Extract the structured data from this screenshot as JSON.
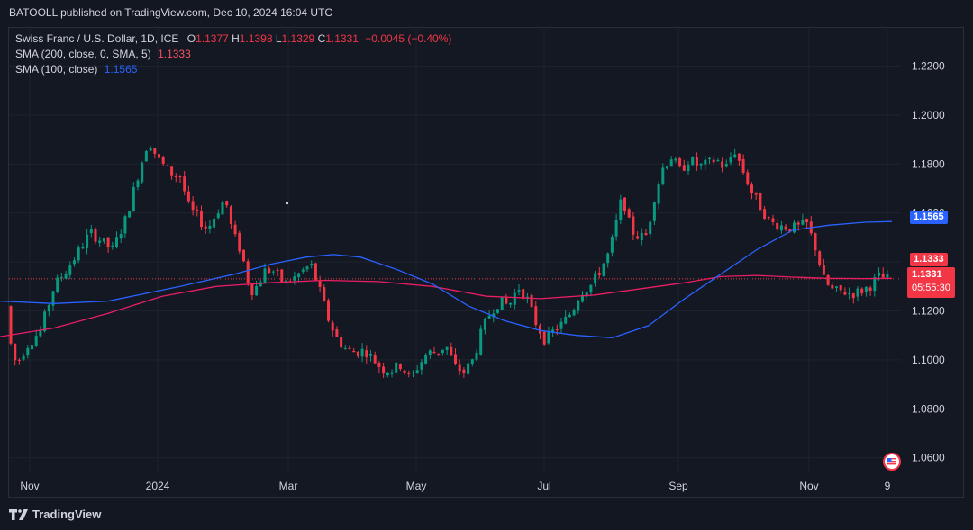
{
  "header": {
    "publisher": "BATOOLL published on TradingView.com, Dec 10, 2024 16:04 UTC"
  },
  "legend": {
    "symbol": "Swiss Franc / U.S. Dollar, 1D, ICE",
    "o_label": "O",
    "o_value": "1.1377",
    "h_label": "H",
    "h_value": "1.1398",
    "l_label": "L",
    "l_value": "1.1329",
    "c_label": "C",
    "c_value": "1.1331",
    "change": "−0.0045 (−0.40%)",
    "sma200_label": "SMA (200, close, 0, SMA, 5)",
    "sma200_value": "1.1333",
    "sma100_label": "SMA (100, close)",
    "sma100_value": "1.1565"
  },
  "price_axis": {
    "ticks": [
      "1.2200",
      "1.2000",
      "1.1800",
      "1.1600",
      "1.1400",
      "1.1200",
      "1.1000",
      "1.0800",
      "1.0600"
    ]
  },
  "time_axis": {
    "ticks": [
      "Nov",
      "2024",
      "Mar",
      "May",
      "Jul",
      "Sep",
      "Nov",
      "9"
    ]
  },
  "price_tags": {
    "sma100": "1.1565",
    "sma200": "1.1333",
    "last_price": "1.1331",
    "countdown": "05:55:30"
  },
  "footer": {
    "brand": "TradingView"
  },
  "colors": {
    "up": "#089981",
    "down": "#f23645",
    "sma100": "#2962ff",
    "sma200": "#e91e63",
    "background": "#131722",
    "grid": "#1e222d"
  },
  "chart_data": {
    "type": "candlestick",
    "title": "Swiss Franc / U.S. Dollar, 1D, ICE",
    "ylim": [
      1.054,
      1.236
    ],
    "y_ticks": [
      1.22,
      1.2,
      1.18,
      1.16,
      1.14,
      1.12,
      1.1,
      1.08,
      1.06
    ],
    "x_ticks": [
      "Nov",
      "2024",
      "Mar",
      "May",
      "Jul",
      "Sep",
      "Nov",
      "9"
    ],
    "close_path": [
      [
        0,
        1.122
      ],
      [
        8,
        1.112
      ],
      [
        18,
        1.098
      ],
      [
        30,
        1.106
      ],
      [
        45,
        1.112
      ],
      [
        60,
        1.13
      ],
      [
        80,
        1.14
      ],
      [
        100,
        1.152
      ],
      [
        115,
        1.148
      ],
      [
        125,
        1.145
      ],
      [
        140,
        1.158
      ],
      [
        155,
        1.178
      ],
      [
        165,
        1.19
      ],
      [
        175,
        1.182
      ],
      [
        190,
        1.176
      ],
      [
        200,
        1.175
      ],
      [
        210,
        1.162
      ],
      [
        220,
        1.158
      ],
      [
        230,
        1.153
      ],
      [
        240,
        1.16
      ],
      [
        250,
        1.166
      ],
      [
        258,
        1.152
      ],
      [
        268,
        1.144
      ],
      [
        278,
        1.128
      ],
      [
        285,
        1.13
      ],
      [
        295,
        1.137
      ],
      [
        305,
        1.136
      ],
      [
        315,
        1.131
      ],
      [
        325,
        1.133
      ],
      [
        335,
        1.136
      ],
      [
        345,
        1.139
      ],
      [
        355,
        1.128
      ],
      [
        365,
        1.116
      ],
      [
        375,
        1.108
      ],
      [
        385,
        1.104
      ],
      [
        395,
        1.103
      ],
      [
        405,
        1.104
      ],
      [
        415,
        1.1
      ],
      [
        425,
        1.096
      ],
      [
        435,
        1.096
      ],
      [
        445,
        1.098
      ],
      [
        455,
        1.092
      ],
      [
        465,
        1.098
      ],
      [
        475,
        1.103
      ],
      [
        485,
        1.103
      ],
      [
        495,
        1.106
      ],
      [
        505,
        1.097
      ],
      [
        515,
        1.095
      ],
      [
        525,
        1.1
      ],
      [
        535,
        1.112
      ],
      [
        545,
        1.12
      ],
      [
        555,
        1.124
      ],
      [
        565,
        1.122
      ],
      [
        575,
        1.13
      ],
      [
        585,
        1.125
      ],
      [
        595,
        1.115
      ],
      [
        605,
        1.108
      ],
      [
        615,
        1.112
      ],
      [
        625,
        1.115
      ],
      [
        635,
        1.12
      ],
      [
        645,
        1.128
      ],
      [
        655,
        1.13
      ],
      [
        665,
        1.136
      ],
      [
        675,
        1.143
      ],
      [
        682,
        1.152
      ],
      [
        688,
        1.164
      ],
      [
        694,
        1.163
      ],
      [
        700,
        1.153
      ],
      [
        710,
        1.15
      ],
      [
        718,
        1.151
      ],
      [
        726,
        1.166
      ],
      [
        735,
        1.178
      ],
      [
        745,
        1.183
      ],
      [
        755,
        1.177
      ],
      [
        765,
        1.182
      ],
      [
        775,
        1.179
      ],
      [
        785,
        1.18
      ],
      [
        795,
        1.182
      ],
      [
        805,
        1.178
      ],
      [
        815,
        1.186
      ],
      [
        825,
        1.177
      ],
      [
        835,
        1.168
      ],
      [
        845,
        1.162
      ],
      [
        855,
        1.156
      ],
      [
        865,
        1.155
      ],
      [
        875,
        1.154
      ],
      [
        885,
        1.154
      ],
      [
        895,
        1.156
      ],
      [
        905,
        1.146
      ],
      [
        915,
        1.132
      ],
      [
        925,
        1.128
      ],
      [
        935,
        1.128
      ],
      [
        945,
        1.127
      ],
      [
        955,
        1.128
      ],
      [
        965,
        1.13
      ],
      [
        975,
        1.134
      ],
      [
        985,
        1.1331
      ]
    ],
    "sma100_path": [
      [
        0,
        1.124
      ],
      [
        60,
        1.123
      ],
      [
        120,
        1.124
      ],
      [
        200,
        1.13
      ],
      [
        260,
        1.135
      ],
      [
        300,
        1.139
      ],
      [
        340,
        1.142
      ],
      [
        370,
        1.143
      ],
      [
        400,
        1.142
      ],
      [
        440,
        1.137
      ],
      [
        480,
        1.131
      ],
      [
        520,
        1.122
      ],
      [
        560,
        1.116
      ],
      [
        600,
        1.112
      ],
      [
        640,
        1.11
      ],
      [
        680,
        1.109
      ],
      [
        720,
        1.114
      ],
      [
        760,
        1.125
      ],
      [
        800,
        1.135
      ],
      [
        840,
        1.145
      ],
      [
        880,
        1.153
      ],
      [
        920,
        1.155
      ],
      [
        960,
        1.1562
      ],
      [
        990,
        1.1565
      ]
    ],
    "sma200_path": [
      [
        0,
        1.1095
      ],
      [
        60,
        1.113
      ],
      [
        120,
        1.119
      ],
      [
        180,
        1.126
      ],
      [
        240,
        1.13
      ],
      [
        300,
        1.1315
      ],
      [
        360,
        1.1325
      ],
      [
        420,
        1.132
      ],
      [
        480,
        1.13
      ],
      [
        540,
        1.126
      ],
      [
        600,
        1.125
      ],
      [
        660,
        1.1265
      ],
      [
        720,
        1.1295
      ],
      [
        760,
        1.1315
      ],
      [
        800,
        1.134
      ],
      [
        840,
        1.1345
      ],
      [
        880,
        1.1338
      ],
      [
        920,
        1.1333
      ],
      [
        960,
        1.1332
      ],
      [
        990,
        1.1333
      ]
    ]
  }
}
